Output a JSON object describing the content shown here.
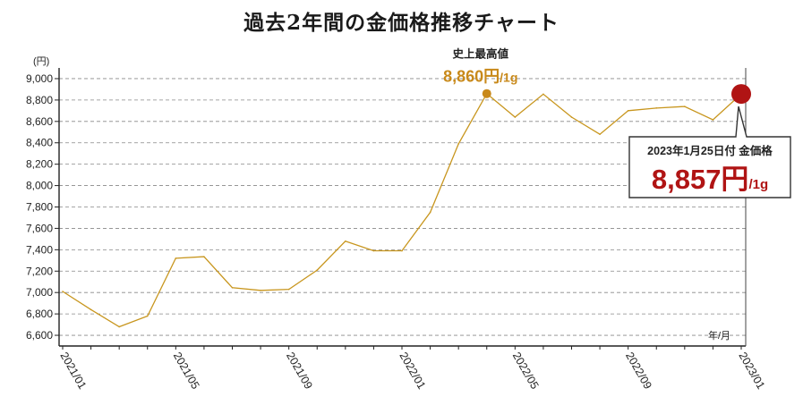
{
  "chart_data": {
    "type": "line",
    "title": "過去2年間の金価格推移チャート",
    "y_unit_label": "(円)",
    "x_unit_label": "年/月",
    "ylim": [
      6500,
      9100
    ],
    "y_ticks": [
      6600,
      6800,
      7000,
      7200,
      7400,
      7600,
      7800,
      8000,
      8200,
      8400,
      8600,
      8800,
      9000
    ],
    "y_tick_labels": [
      "6,600",
      "6,800",
      "7,000",
      "7,200",
      "7,400",
      "7,600",
      "7,800",
      "8,000",
      "8,200",
      "8,400",
      "8,600",
      "8,800",
      "9,000"
    ],
    "x_tick_labels": [
      "2021/01",
      "2021/05",
      "2021/09",
      "2022/01",
      "2022/05",
      "2022/09",
      "2023/01"
    ],
    "x_tick_index": [
      0,
      4,
      8,
      12,
      16,
      20,
      24
    ],
    "grid": true,
    "line_color": "#c8961e",
    "series": [
      {
        "values": [
          7010,
          6840,
          6680,
          6780,
          7320,
          7335,
          7045,
          7020,
          7030,
          7210,
          7480,
          7390,
          7390,
          7750,
          8390,
          8860,
          8640,
          8855,
          8640,
          8480,
          8700,
          8725,
          8740,
          8615,
          8857
        ]
      }
    ],
    "annotations": {
      "all_time_high": {
        "label": "史上最高値",
        "value_text": "8,860円",
        "unit_text": "/1g",
        "index": 15,
        "value": 8860,
        "color": "#c8891a"
      },
      "latest": {
        "head_text": "2023年1月25日付 金価格",
        "value_text": "8,857円",
        "unit_text": "/1g",
        "index": 24,
        "value": 8857,
        "color": "#b01414"
      }
    }
  }
}
